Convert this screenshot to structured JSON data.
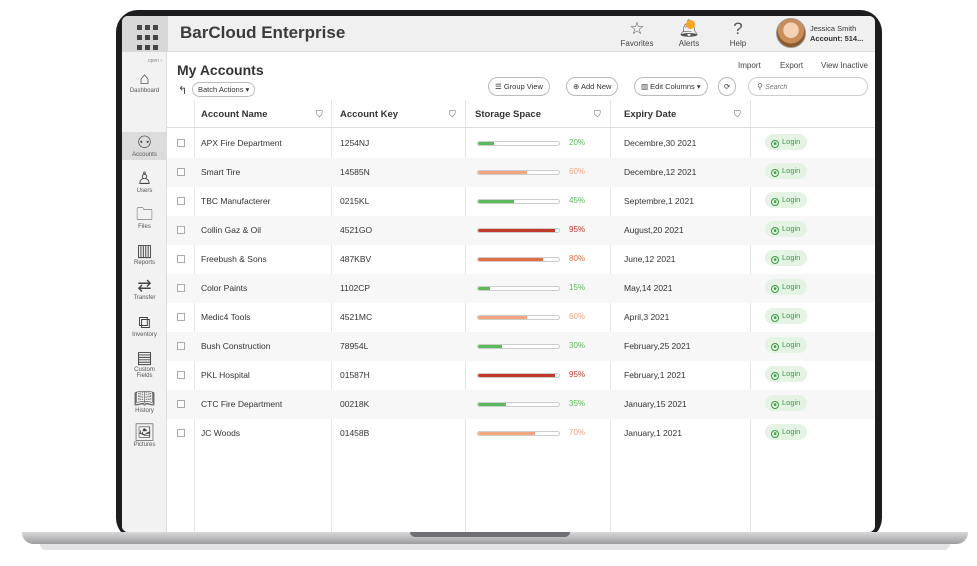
{
  "header": {
    "title": "BarCloud Enterprise",
    "favorites_label": "Favorites",
    "alerts_label": "Alerts",
    "help_label": "Help",
    "user_name": "Jessica Smith",
    "account": "Account: 514..."
  },
  "sidebar": {
    "open_label": "open ›",
    "items": [
      {
        "label": "Dashboard",
        "icon": "home-icon"
      },
      {
        "label": "Accounts",
        "icon": "accounts-icon"
      },
      {
        "label": "Users",
        "icon": "users-icon"
      },
      {
        "label": "Files",
        "icon": "files-icon"
      },
      {
        "label": "Reports",
        "icon": "reports-icon"
      },
      {
        "label": "Transfer",
        "icon": "transfer-icon"
      },
      {
        "label": "Inventory",
        "icon": "inventory-icon"
      },
      {
        "label": "Custom",
        "label2": "Fields",
        "icon": "custom-fields-icon"
      },
      {
        "label": "History",
        "icon": "history-icon"
      },
      {
        "label": "Pictures",
        "icon": "pictures-icon"
      }
    ]
  },
  "page": {
    "title": "My Accounts",
    "import": "Import",
    "export": "Export",
    "view_inactive": "View Inactive",
    "batch_actions": "Batch Actions ▾",
    "group_view": "Group View",
    "add_new": "Add New",
    "edit_columns": "Edit Columns ▾",
    "search_placeholder": "Search"
  },
  "table": {
    "columns": [
      "Account Name",
      "Account Key",
      "Storage Space",
      "Expiry Date"
    ],
    "login_label": "Login",
    "rows": [
      {
        "name": "APX Fire Department",
        "key": "1254NJ",
        "storage": 20,
        "storage_label": "20%",
        "color": "#5cb85c",
        "expiry": "Decembre,30 2021"
      },
      {
        "name": "Smart Tire",
        "key": "14585N",
        "storage": 60,
        "storage_label": "60%",
        "color": "#f4a57f",
        "expiry": "Decembre,12 2021"
      },
      {
        "name": "TBC Manufacterer",
        "key": "0215KL",
        "storage": 45,
        "storage_label": "45%",
        "color": "#5cb85c",
        "expiry": "Septembre,1 2021"
      },
      {
        "name": "Collin Gaz & Oil",
        "key": "4521GO",
        "storage": 95,
        "storage_label": "95%",
        "color": "#c0392b",
        "expiry": "August,20 2021"
      },
      {
        "name": "Freebush & Sons",
        "key": "487KBV",
        "storage": 80,
        "storage_label": "80%",
        "color": "#e07040",
        "expiry": "June,12 2021"
      },
      {
        "name": "Color Paints",
        "key": "1102CP",
        "storage": 15,
        "storage_label": "15%",
        "color": "#5cb85c",
        "expiry": "May,14 2021"
      },
      {
        "name": "Medic4 Tools",
        "key": "4521MC",
        "storage": 60,
        "storage_label": "60%",
        "color": "#f4a57f",
        "expiry": "April,3 2021"
      },
      {
        "name": "Bush Construction",
        "key": "78954L",
        "storage": 30,
        "storage_label": "30%",
        "color": "#5cb85c",
        "expiry": "February,25 2021"
      },
      {
        "name": "PKL Hospital",
        "key": "01587H",
        "storage": 95,
        "storage_label": "95%",
        "color": "#c0392b",
        "expiry": "February,1 2021"
      },
      {
        "name": "CTC Fire Department",
        "key": "00218K",
        "storage": 35,
        "storage_label": "35%",
        "color": "#5cb85c",
        "expiry": "January,15 2021"
      },
      {
        "name": "JC Woods",
        "key": "01458B",
        "storage": 70,
        "storage_label": "70%",
        "color": "#f4a57f",
        "expiry": "January,1 2021"
      }
    ]
  }
}
